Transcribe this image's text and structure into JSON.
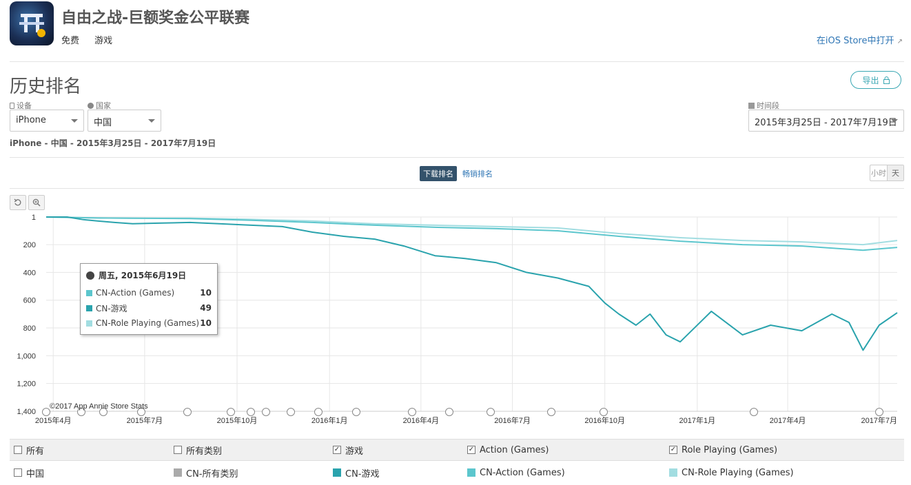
{
  "app": {
    "title": "自由之战-巨额奖金公平联赛",
    "price": "免费",
    "category": "游戏",
    "open_store": "在iOS Store中打开"
  },
  "section": {
    "title": "历史排名",
    "export_label": "导出"
  },
  "filters": {
    "device_label": "设备",
    "device_value": "iPhone",
    "country_label": "国家",
    "country_value": "中国",
    "period_label": "时间段",
    "period_value": "2015年3月25日 - 2017年7月19日"
  },
  "crumb": "iPhone - 中国 - 2015年3月25日 - 2017年7月19日",
  "tabs": {
    "downloads": "下载排名",
    "grossing": "畅销排名"
  },
  "granularity": {
    "hour": "小时",
    "day": "天"
  },
  "copyright": "©2017 App Annie Store Stats",
  "tooltip": {
    "date": "周五, 2015年6月19日",
    "rows": [
      {
        "name": "CN-Action (Games)",
        "value": "10"
      },
      {
        "name": "CN-游戏",
        "value": "49"
      },
      {
        "name": "CN-Role Playing (Games)",
        "value": "10"
      }
    ]
  },
  "legend": {
    "headers": [
      "所有",
      "所有类别",
      "游戏",
      "Action (Games)",
      "Role Playing (Games)"
    ],
    "checked": [
      false,
      false,
      true,
      true,
      true
    ],
    "row_label": "中国",
    "series": [
      "CN-所有类别",
      "CN-游戏",
      "CN-Action (Games)",
      "CN-Role Playing (Games)"
    ]
  },
  "colors": {
    "all": "#aaaaaa",
    "games": "#2aa3ad",
    "action": "#5cc6cd",
    "role": "#a2dde1",
    "accent": "#3aa7b3",
    "link": "#2f76b5"
  },
  "chart_data": {
    "type": "line",
    "y_reversed": true,
    "ylim": [
      1,
      1400
    ],
    "yticks": [
      "1",
      "200",
      "400",
      "600",
      "800",
      "1,000",
      "1,200",
      "1,400"
    ],
    "yticks_values": [
      1,
      200,
      400,
      600,
      800,
      1000,
      1200,
      1400
    ],
    "x_range": [
      "2015-03-25",
      "2017-07-19"
    ],
    "xticks": [
      "2015年4月",
      "2015年7月",
      "2015年10月",
      "2016年1月",
      "2016年4月",
      "2016年7月",
      "2016年10月",
      "2017年1月",
      "2017年4月",
      "2017年7月"
    ],
    "xticks_dates": [
      "2015-04-01",
      "2015-07-01",
      "2015-10-01",
      "2016-01-01",
      "2016-04-01",
      "2016-07-01",
      "2016-10-01",
      "2017-01-01",
      "2017-04-01",
      "2017-07-01"
    ],
    "series": [
      {
        "name": "CN-游戏",
        "x": [
          "2015-03-25",
          "2015-04-15",
          "2015-05-01",
          "2015-05-15",
          "2015-06-01",
          "2015-06-19",
          "2015-07-15",
          "2015-08-15",
          "2015-09-15",
          "2015-10-15",
          "2015-11-15",
          "2015-12-15",
          "2016-01-15",
          "2016-02-15",
          "2016-03-15",
          "2016-04-15",
          "2016-05-15",
          "2016-06-15",
          "2016-07-15",
          "2016-08-15",
          "2016-09-15",
          "2016-10-01",
          "2016-10-15",
          "2016-11-01",
          "2016-11-15",
          "2016-12-01",
          "2016-12-15",
          "2017-01-15",
          "2017-02-15",
          "2017-03-15",
          "2017-04-15",
          "2017-05-15",
          "2017-06-01",
          "2017-06-15",
          "2017-07-01",
          "2017-07-19"
        ],
        "values": [
          1,
          1,
          20,
          30,
          40,
          49,
          45,
          40,
          50,
          60,
          70,
          110,
          140,
          160,
          210,
          280,
          300,
          330,
          400,
          440,
          500,
          620,
          700,
          780,
          700,
          850,
          900,
          680,
          850,
          780,
          820,
          700,
          760,
          960,
          780,
          690
        ]
      },
      {
        "name": "CN-Action (Games)",
        "x": [
          "2015-03-25",
          "2015-05-15",
          "2015-06-19",
          "2015-08-15",
          "2015-10-15",
          "2015-12-15",
          "2016-02-15",
          "2016-04-15",
          "2016-06-15",
          "2016-08-15",
          "2016-10-15",
          "2016-12-15",
          "2017-02-15",
          "2017-04-15",
          "2017-06-15",
          "2017-07-19"
        ],
        "values": [
          1,
          8,
          10,
          12,
          25,
          40,
          60,
          75,
          85,
          100,
          140,
          175,
          200,
          210,
          240,
          220
        ]
      },
      {
        "name": "CN-Role Playing (Games)",
        "x": [
          "2015-03-25",
          "2015-05-15",
          "2015-06-19",
          "2015-08-15",
          "2015-10-15",
          "2015-12-15",
          "2016-02-15",
          "2016-04-15",
          "2016-06-15",
          "2016-08-15",
          "2016-10-15",
          "2016-12-15",
          "2017-02-15",
          "2017-04-15",
          "2017-06-15",
          "2017-07-19"
        ],
        "values": [
          1,
          8,
          10,
          10,
          18,
          30,
          50,
          60,
          70,
          80,
          120,
          150,
          170,
          180,
          200,
          170
        ]
      }
    ]
  }
}
